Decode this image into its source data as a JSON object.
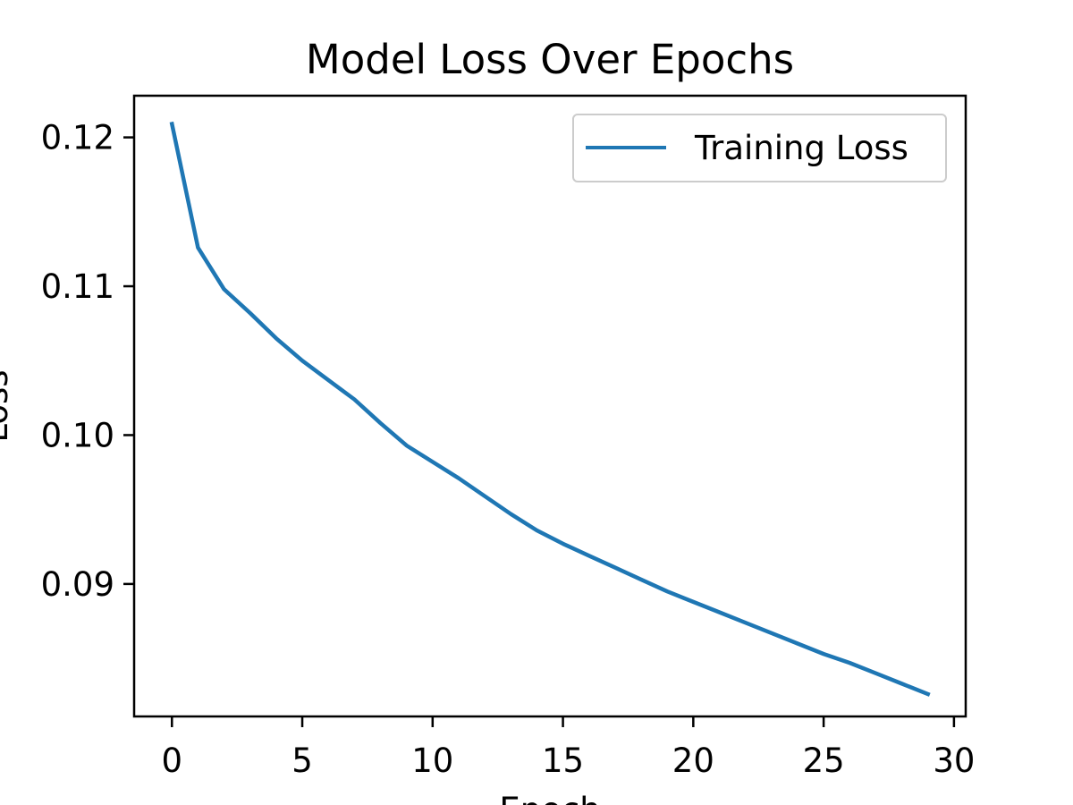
{
  "chart_data": {
    "type": "line",
    "title": "Model Loss Over Epochs",
    "xlabel": "Epoch",
    "ylabel": "Loss",
    "xlim": [
      -1.45,
      30.45
    ],
    "ylim": [
      0.0811,
      0.1228
    ],
    "xticks": [
      "0",
      "5",
      "10",
      "15",
      "20",
      "25",
      "30"
    ],
    "yticks": [
      "0.09",
      "0.10",
      "0.11",
      "0.12"
    ],
    "grid": false,
    "legend": {
      "position": "top-right"
    },
    "series": [
      {
        "name": "Training Loss",
        "color": "#1f77b4",
        "x": [
          0,
          1,
          2,
          3,
          4,
          5,
          6,
          7,
          8,
          9,
          10,
          11,
          12,
          13,
          14,
          15,
          16,
          17,
          18,
          19,
          20,
          21,
          22,
          23,
          24,
          25,
          26,
          27,
          28,
          29
        ],
        "y": [
          0.1209,
          0.1126,
          0.1098,
          0.1082,
          0.1065,
          0.105,
          0.1037,
          0.1024,
          0.1008,
          0.0993,
          0.0982,
          0.0971,
          0.0959,
          0.0947,
          0.0936,
          0.0927,
          0.0919,
          0.0911,
          0.0903,
          0.0895,
          0.0888,
          0.0881,
          0.0874,
          0.0867,
          0.086,
          0.0853,
          0.0847,
          0.084,
          0.0833,
          0.0826
        ]
      }
    ]
  }
}
